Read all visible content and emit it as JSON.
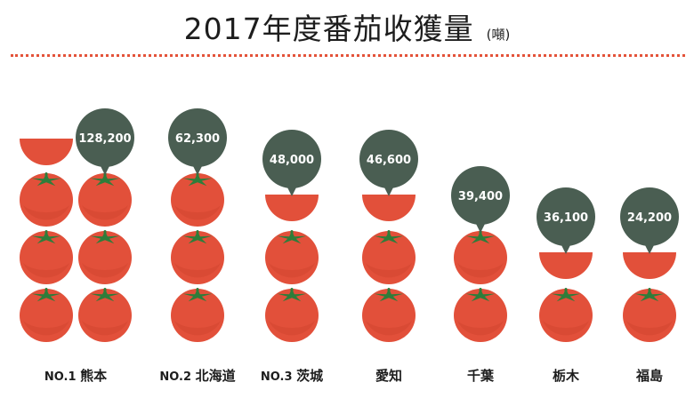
{
  "header": {
    "title": "2017年度番茄收獲量",
    "unit": "(噸)"
  },
  "colors": {
    "tomato": "#e2503a",
    "tomato_shadow": "#c8402c",
    "leaf": "#2e7d3a",
    "bubble": "#4a5e52",
    "divider": "#e4533a",
    "text": "#1d1d1d"
  },
  "chart_data": {
    "type": "pictogram",
    "title": "2017年度番茄收獲量",
    "unit": "(噸)",
    "categories": [
      "熊本",
      "北海道",
      "茨城",
      "愛知",
      "千葉",
      "栃木",
      "福島"
    ],
    "rank_labels": [
      "NO.1",
      "NO.2",
      "NO.3",
      "",
      "",
      "",
      ""
    ],
    "values": [
      128200,
      62300,
      48000,
      46600,
      39400,
      36100,
      24200
    ],
    "value_labels": [
      "128,200",
      "62,300",
      "48,000",
      "46,600",
      "39,400",
      "36,100",
      "24,200"
    ],
    "tomato_counts": [
      6.5,
      3,
      2.5,
      2.5,
      2,
      1.5,
      1.5
    ],
    "icon": "tomato-icon"
  }
}
